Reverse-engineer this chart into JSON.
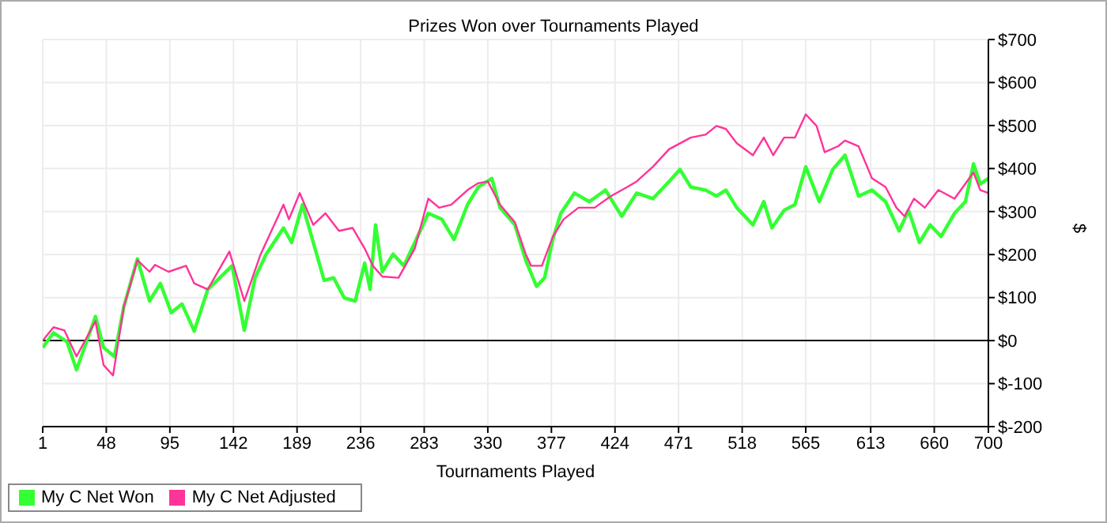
{
  "chart_data": {
    "type": "line",
    "title": "Prizes Won over Tournaments Played",
    "xlabel": "Tournaments Played",
    "y2label": "$",
    "xlim": [
      1,
      700
    ],
    "xticks": [
      1,
      48,
      95,
      142,
      189,
      236,
      283,
      330,
      377,
      424,
      471,
      518,
      565,
      613,
      660,
      700
    ],
    "y2lim": [
      -200,
      700
    ],
    "y2ticks": [
      {
        "value": -200,
        "label": "$-200"
      },
      {
        "value": -100,
        "label": "$-100"
      },
      {
        "value": 0,
        "label": "$0"
      },
      {
        "value": 100,
        "label": "$100"
      },
      {
        "value": 200,
        "label": "$200"
      },
      {
        "value": 300,
        "label": "$300"
      },
      {
        "value": 400,
        "label": "$400"
      },
      {
        "value": 500,
        "label": "$500"
      },
      {
        "value": 600,
        "label": "$600"
      },
      {
        "value": 700,
        "label": "$700"
      }
    ],
    "grid": true,
    "legend": "bottom left",
    "marker": "none",
    "line_style": "solid",
    "ref_lines": [
      {
        "axis": "y2",
        "value": 0,
        "color": "#000000"
      }
    ],
    "series": [
      {
        "name": "My C Net Won",
        "color": "#33ff33",
        "axis": "y2",
        "x": [
          1,
          9,
          19,
          26,
          40,
          46,
          54,
          61,
          71,
          80,
          88,
          96,
          104,
          113,
          123,
          141,
          150,
          158,
          166,
          179,
          185,
          193,
          201,
          209,
          216,
          224,
          232,
          239,
          243,
          247,
          252,
          260,
          268,
          276,
          286,
          296,
          305,
          315,
          323,
          333,
          339,
          350,
          358,
          366,
          372,
          378,
          384,
          394,
          405,
          417,
          429,
          440,
          452,
          464,
          472,
          480,
          491,
          499,
          506,
          514,
          526,
          534,
          540,
          549,
          557,
          565,
          575,
          585,
          594,
          604,
          614,
          624,
          634,
          641,
          649,
          657,
          665,
          675,
          683,
          689,
          694,
          700
        ],
        "values": [
          -16,
          18,
          -3,
          -68,
          56,
          -16,
          -37,
          79,
          190,
          92,
          133,
          65,
          85,
          22,
          119,
          174,
          24,
          146,
          200,
          262,
          228,
          316,
          228,
          140,
          146,
          99,
          92,
          180,
          119,
          269,
          160,
          201,
          174,
          228,
          296,
          282,
          235,
          316,
          357,
          377,
          309,
          269,
          187,
          126,
          146,
          235,
          296,
          343,
          323,
          350,
          289,
          343,
          330,
          370,
          398,
          357,
          350,
          336,
          350,
          309,
          269,
          323,
          262,
          303,
          316,
          404,
          323,
          398,
          431,
          336,
          350,
          323,
          255,
          303,
          228,
          269,
          242,
          296,
          323,
          411,
          364,
          377
        ]
      },
      {
        "name": "My C Net Adjusted",
        "color": "#ff3399",
        "axis": "y2",
        "x": [
          1,
          9,
          17,
          26,
          40,
          46,
          53,
          61,
          71,
          80,
          84,
          94,
          107,
          113,
          123,
          139,
          150,
          162,
          179,
          183,
          191,
          201,
          210,
          220,
          230,
          239,
          245,
          252,
          264,
          276,
          286,
          294,
          303,
          315,
          323,
          330,
          339,
          350,
          358,
          362,
          370,
          378,
          386,
          397,
          409,
          421,
          433,
          440,
          452,
          464,
          480,
          491,
          499,
          506,
          514,
          526,
          534,
          541,
          549,
          557,
          565,
          573,
          579,
          589,
          594,
          604,
          614,
          624,
          632,
          638,
          645,
          653,
          663,
          675,
          689,
          694,
          700
        ],
        "values": [
          0,
          31,
          24,
          -37,
          45,
          -57,
          -81,
          79,
          187,
          160,
          176,
          160,
          174,
          133,
          119,
          207,
          92,
          200,
          316,
          282,
          343,
          269,
          296,
          255,
          262,
          214,
          174,
          149,
          146,
          214,
          330,
          309,
          316,
          350,
          366,
          370,
          316,
          275,
          201,
          174,
          174,
          241,
          282,
          309,
          309,
          336,
          357,
          370,
          404,
          445,
          472,
          479,
          499,
          492,
          459,
          431,
          472,
          431,
          472,
          472,
          526,
          499,
          438,
          452,
          465,
          452,
          377,
          357,
          309,
          289,
          330,
          309,
          350,
          330,
          391,
          350,
          343
        ]
      }
    ]
  }
}
